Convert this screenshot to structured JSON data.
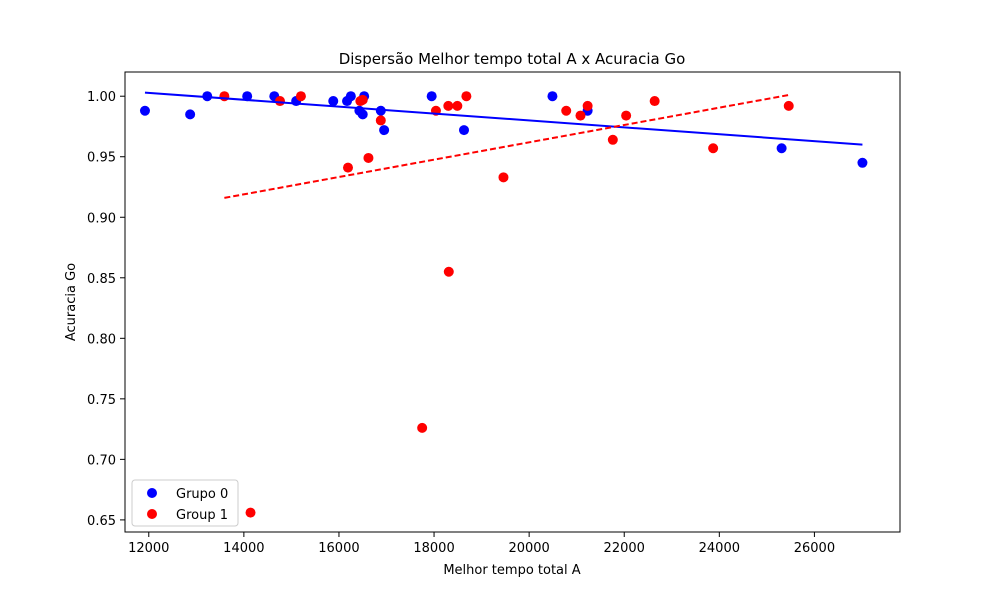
{
  "chart_data": {
    "type": "scatter",
    "title": "Dispersão Melhor tempo total A x Acuracia Go",
    "xlabel": "Melhor tempo total A",
    "ylabel": "Acuracia Go",
    "xlim": [
      11500,
      27800
    ],
    "ylim": [
      0.64,
      1.02
    ],
    "xticks": [
      12000,
      14000,
      16000,
      18000,
      20000,
      22000,
      24000,
      26000
    ],
    "yticks": [
      0.65,
      0.7,
      0.75,
      0.8,
      0.85,
      0.9,
      0.95,
      1.0
    ],
    "xtick_labels": [
      "12000",
      "14000",
      "16000",
      "18000",
      "20000",
      "22000",
      "24000",
      "26000"
    ],
    "ytick_labels": [
      "0.65",
      "0.70",
      "0.75",
      "0.80",
      "0.85",
      "0.90",
      "0.95",
      "1.00"
    ],
    "grid": false,
    "legend_position": "lower-left",
    "series": [
      {
        "name": "Grupo 0",
        "color": "#0000ff",
        "points": [
          [
            11920,
            0.988
          ],
          [
            12870,
            0.985
          ],
          [
            13230,
            1.0
          ],
          [
            14070,
            1.0
          ],
          [
            14640,
            1.0
          ],
          [
            15100,
            0.996
          ],
          [
            15880,
            0.996
          ],
          [
            16170,
            0.996
          ],
          [
            16250,
            1.0
          ],
          [
            16430,
            0.988
          ],
          [
            16500,
            0.985
          ],
          [
            16530,
            1.0
          ],
          [
            16880,
            0.988
          ],
          [
            16950,
            0.972
          ],
          [
            17950,
            1.0
          ],
          [
            18630,
            0.972
          ],
          [
            20490,
            1.0
          ],
          [
            21230,
            0.988
          ],
          [
            25310,
            0.957
          ],
          [
            27010,
            0.945
          ]
        ],
        "trend": {
          "x1": 11920,
          "y1": 1.003,
          "x2": 27010,
          "y2": 0.96,
          "style": "solid"
        }
      },
      {
        "name": "Group 1",
        "color": "#ff0000",
        "points": [
          [
            13590,
            1.0
          ],
          [
            14140,
            0.656
          ],
          [
            14760,
            0.996
          ],
          [
            15200,
            1.0
          ],
          [
            16190,
            0.941
          ],
          [
            16450,
            0.996
          ],
          [
            16500,
            0.997
          ],
          [
            16620,
            0.949
          ],
          [
            16880,
            0.98
          ],
          [
            17750,
            0.726
          ],
          [
            18040,
            0.988
          ],
          [
            18300,
            0.992
          ],
          [
            18310,
            0.855
          ],
          [
            18490,
            0.992
          ],
          [
            18680,
            1.0
          ],
          [
            19460,
            0.933
          ],
          [
            20780,
            0.988
          ],
          [
            21080,
            0.984
          ],
          [
            21230,
            0.992
          ],
          [
            21760,
            0.964
          ],
          [
            22040,
            0.984
          ],
          [
            22640,
            0.996
          ],
          [
            23870,
            0.957
          ],
          [
            25460,
            0.992
          ]
        ],
        "trend": {
          "x1": 13590,
          "y1": 0.916,
          "x2": 25460,
          "y2": 1.001,
          "style": "dashed"
        }
      }
    ]
  }
}
